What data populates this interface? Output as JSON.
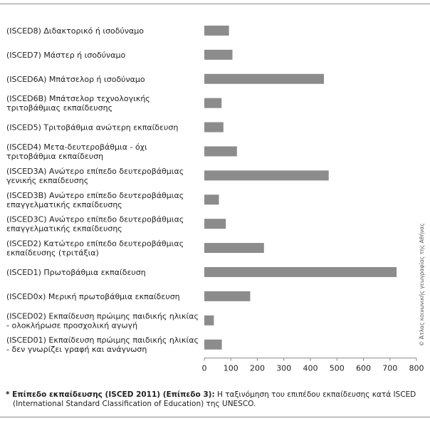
{
  "chart_data": {
    "type": "bar",
    "orientation": "horizontal",
    "categories": [
      [
        "(ISCED8) Διδακτορικό ή ισοδύναμο"
      ],
      [
        "(ISCED7) Μάστερ ή ισοδύναμο"
      ],
      [
        "(ISCED6A) Μπάτσελορ ή ισοδύναμο"
      ],
      [
        "(ISCED6B) Μπάτσελορ τεχνολογικής",
        "τριτοβάθμιας εκπαίδευσης"
      ],
      [
        "(ISCED5) Τριτοβάθμια ανώτερη εκπαίδευση"
      ],
      [
        "(ISCED4) Μετα-δευτεροβάθμια - όχι",
        "τριτοβάθμια εκπαίδευση"
      ],
      [
        "(ISCED3A) Ανώτερο επίπεδο δευτεροβάθμιας",
        "γενικής εκπαίδευσης"
      ],
      [
        "(ISCED3B) Ανώτερο επίπεδο δευτεροβάθμιας",
        "επαγγελματικής εκπαίδευσης"
      ],
      [
        "(ISCED3C) Ανώτερο επίπεδο δευτεροβάθμιας",
        "επαγγελματικής εκπαίδευσης"
      ],
      [
        "(ISCED2) Κατώτερο επίπεδο δευτεροβάθμιας",
        "εκπαίδευσης (τριτάξια)"
      ],
      [
        "(ISCED1) Πρωτοβάθμια εκπαίδευση"
      ],
      [
        "(ISCED0x) Μερική πρωτοβάθμια εκπαίδευση"
      ],
      [
        "(ISCED02) Εκπαίδευση πρώιμης παιδικής ηλικίας",
        "- ολοκλήρωσε προσχολική αγωγή"
      ],
      [
        "(ISCED01) Εκπαίδευση πρώιμης παιδικής ηλικίας",
        "- δεν γνωρίζει γραφή και ανάγνωση"
      ]
    ],
    "values": [
      93,
      106,
      451,
      65,
      72,
      123,
      469,
      55,
      81,
      225,
      725,
      173,
      36,
      66
    ],
    "xlim": [
      0,
      800
    ],
    "xticks": [
      "0",
      "100",
      "200",
      "300",
      "400",
      "500",
      "600",
      "700",
      "800"
    ],
    "bar_color": "#8c8c8c",
    "grid": false,
    "title": "",
    "xlabel": "",
    "ylabel": ""
  },
  "credit": "© Άτλας κοινωνικής γεωγραφίας της Αθήνας",
  "footnote": {
    "bold": "* Επίπεδο εκπαίδευσης (ISCED 2011) (Επίπεδο 3):",
    "line1": " Η ταξινόμηση του επιπέδου εκπαίδευσης κατά ISCED",
    "line2": "(International Standard Classification of Education) της UNESCO."
  }
}
